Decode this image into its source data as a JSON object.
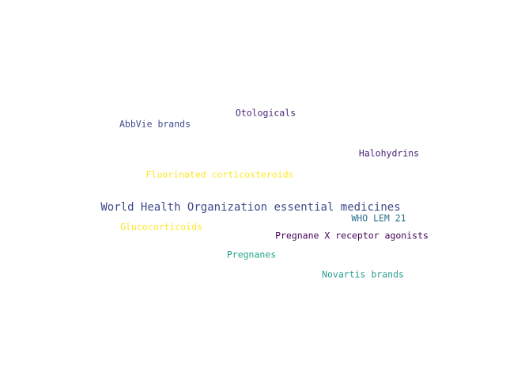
{
  "words": [
    {
      "text": "World Health Organization essential medicines",
      "color": "#3e4a89"
    },
    {
      "text": "Otologicals",
      "color": "#482475"
    },
    {
      "text": "AbbVie brands",
      "color": "#3e4a89"
    },
    {
      "text": "Halohydrins",
      "color": "#482475"
    },
    {
      "text": "Fluorinated corticosteroids",
      "color": "#fde725"
    },
    {
      "text": "WHO LEM 21",
      "color": "#2c728e"
    },
    {
      "text": "Glucocorticoids",
      "color": "#fde725"
    },
    {
      "text": "Pregnane X receptor agonists",
      "color": "#440154"
    },
    {
      "text": "Pregnanes",
      "color": "#21a585"
    },
    {
      "text": "Novartis brands",
      "color": "#2a9d8f"
    }
  ]
}
